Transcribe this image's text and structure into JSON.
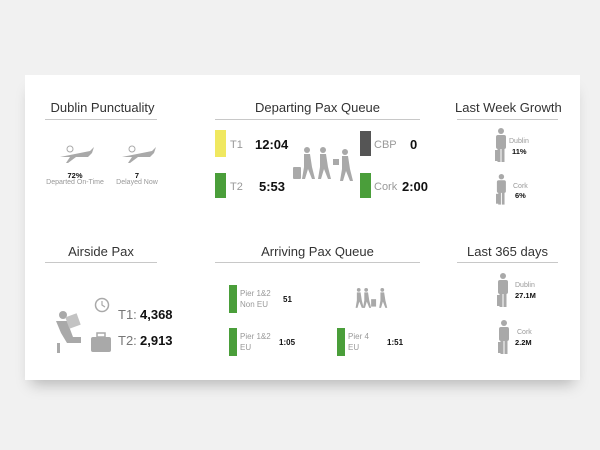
{
  "colors": {
    "yellow": "#f0e860",
    "green": "#4a9e3a",
    "dark": "#555555",
    "icon": "#a9a9a9"
  },
  "punctuality": {
    "title": "Dublin Punctuality",
    "on_time_value": "72%",
    "on_time_label": "Departed On-Time",
    "delayed_value": "7",
    "delayed_label": "Delayed Now"
  },
  "departing": {
    "title": "Departing Pax Queue",
    "items": [
      {
        "label": "T1",
        "value": "12:04",
        "color": "yellow"
      },
      {
        "label": "T2",
        "value": "5:53",
        "color": "green"
      },
      {
        "label": "CBP",
        "value": "0",
        "color": "dark"
      },
      {
        "label": "Cork",
        "value": "2:00",
        "color": "green"
      }
    ]
  },
  "week_growth": {
    "title": "Last Week Growth",
    "items": [
      {
        "label": "Dublin",
        "value": "11%"
      },
      {
        "label": "Cork",
        "value": "6%"
      }
    ]
  },
  "airside": {
    "title": "Airside Pax",
    "t1_label": "T1:",
    "t1_value": "4,368",
    "t2_label": "T2:",
    "t2_value": "2,913"
  },
  "arriving": {
    "title": "Arriving Pax Queue",
    "items": [
      {
        "label1": "Pier 1&2",
        "label2": "Non EU",
        "value": "51"
      },
      {
        "label1": "Pier 1&2",
        "label2": "EU",
        "value": "1:05"
      },
      {
        "label1": "Pier 4",
        "label2": "EU",
        "value": "1:51"
      }
    ]
  },
  "year": {
    "title": "Last 365 days",
    "items": [
      {
        "label": "Dublin",
        "value": "27.1M"
      },
      {
        "label": "Cork",
        "value": "2.2M"
      }
    ]
  }
}
